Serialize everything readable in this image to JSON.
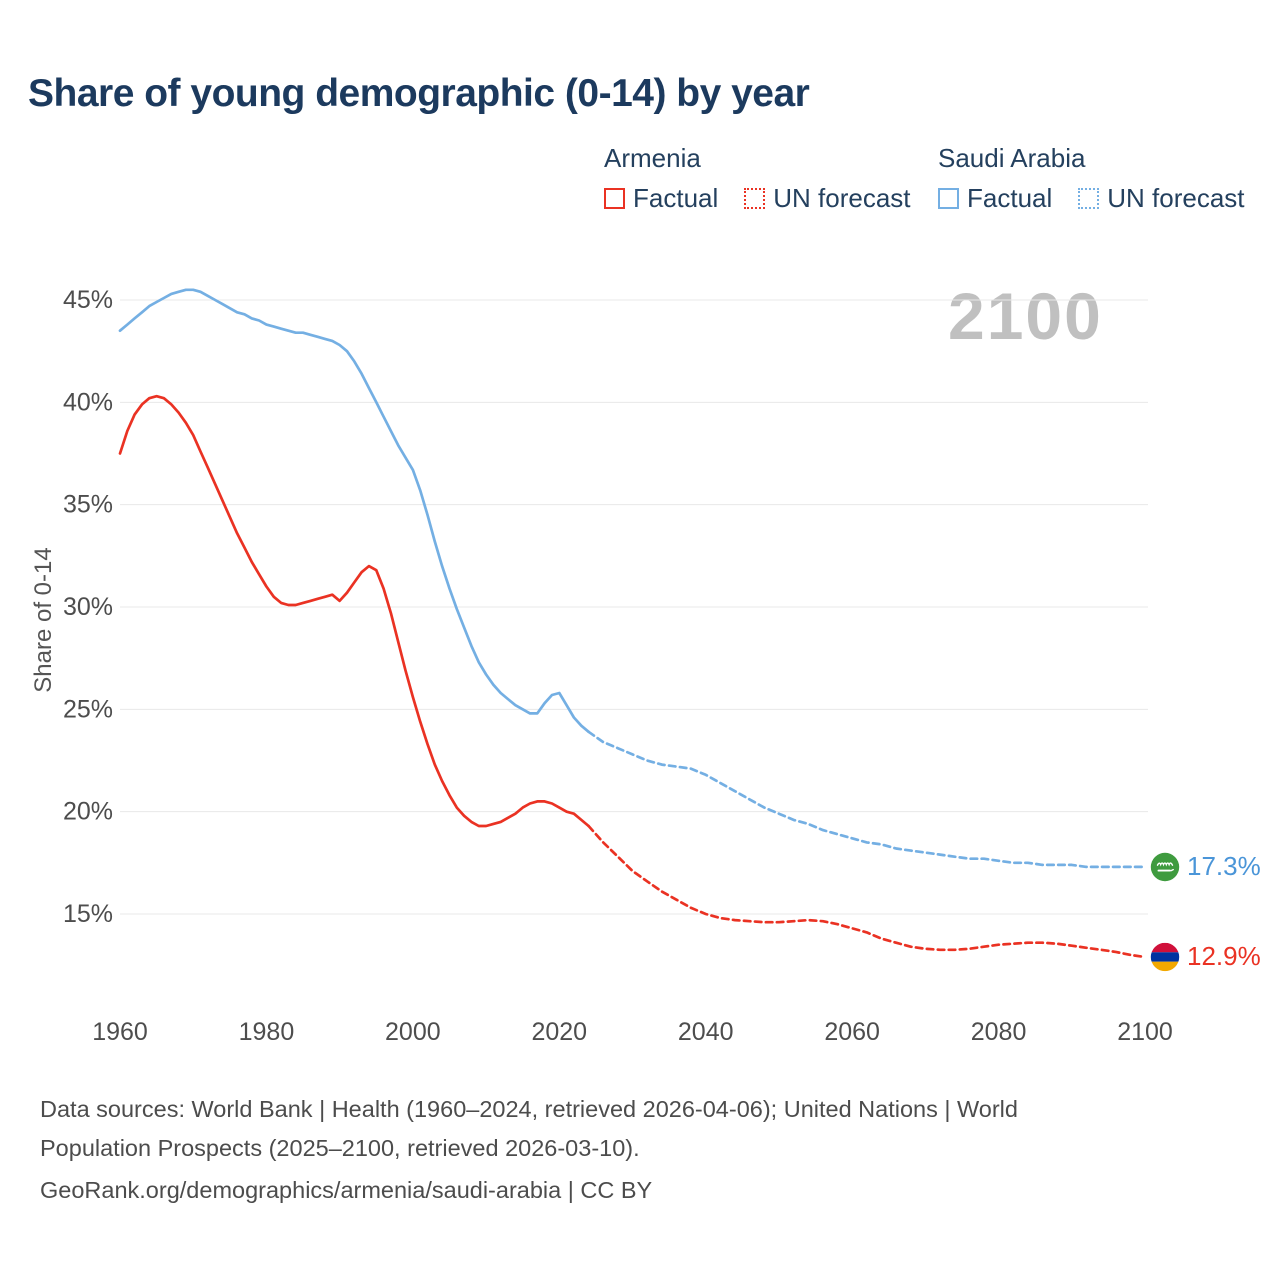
{
  "title": "Share of young demographic (0-14) by year",
  "watermark": "2100",
  "legend": {
    "groups": [
      {
        "name": "Armenia",
        "color": "#ea3223",
        "items": [
          {
            "label": "Factual",
            "style": "solid"
          },
          {
            "label": "UN forecast",
            "style": "dotted"
          }
        ]
      },
      {
        "name": "Saudi Arabia",
        "color": "#74afe3",
        "items": [
          {
            "label": "Factual",
            "style": "solid"
          },
          {
            "label": "UN forecast",
            "style": "dotted"
          }
        ]
      }
    ]
  },
  "chart_data": {
    "type": "line",
    "title": "Share of young demographic (0-14) by year",
    "xlabel": "",
    "ylabel": "Share of 0-14",
    "xlim": [
      1960,
      2100
    ],
    "ylim": [
      13,
      46
    ],
    "grid": "horizontal",
    "x_tick_values": [
      1960,
      1980,
      2000,
      2020,
      2040,
      2060,
      2080,
      2100
    ],
    "x_tick_labels": [
      "1960",
      "1980",
      "2000",
      "2020",
      "2040",
      "2060",
      "2080",
      "2100"
    ],
    "y_tick_values": [
      15,
      20,
      25,
      30,
      35,
      40,
      45
    ],
    "y_tick_labels": [
      "15%",
      "20%",
      "25%",
      "30%",
      "35%",
      "40%",
      "45%"
    ],
    "series": [
      {
        "id": "armenia-factual",
        "name": "Armenia Factual",
        "color": "#ea3223",
        "dash": "solid",
        "x_start": 1960,
        "x_step": 1,
        "values": [
          37.5,
          38.6,
          39.4,
          39.9,
          40.2,
          40.3,
          40.2,
          39.9,
          39.5,
          39.0,
          38.4,
          37.6,
          36.8,
          36.0,
          35.2,
          34.4,
          33.6,
          32.9,
          32.2,
          31.6,
          31.0,
          30.5,
          30.2,
          30.1,
          30.1,
          30.2,
          30.3,
          30.4,
          30.5,
          30.6,
          30.3,
          30.7,
          31.2,
          31.7,
          32.0,
          31.8,
          30.9,
          29.7,
          28.3,
          26.9,
          25.6,
          24.4,
          23.3,
          22.3,
          21.5,
          20.8,
          20.2,
          19.8,
          19.5,
          19.3,
          19.3,
          19.4,
          19.5,
          19.7,
          19.9,
          20.2,
          20.4,
          20.5,
          20.5,
          20.4,
          20.2,
          20.0,
          19.9,
          19.6,
          19.3
        ]
      },
      {
        "id": "armenia-forecast",
        "name": "Armenia UN forecast",
        "color": "#ea3223",
        "dash": "dashed",
        "x_start": 2024,
        "x_step": 2,
        "values": [
          19.3,
          18.5,
          17.8,
          17.1,
          16.6,
          16.1,
          15.7,
          15.3,
          15.0,
          14.8,
          14.7,
          14.65,
          14.6,
          14.6,
          14.65,
          14.7,
          14.65,
          14.5,
          14.3,
          14.1,
          13.8,
          13.6,
          13.4,
          13.3,
          13.25,
          13.25,
          13.3,
          13.4,
          13.5,
          13.55,
          13.6,
          13.6,
          13.55,
          13.45,
          13.35,
          13.25,
          13.15,
          13.0,
          12.9
        ]
      },
      {
        "id": "saudi-factual",
        "name": "Saudi Arabia Factual",
        "color": "#74afe3",
        "dash": "solid",
        "x_start": 1960,
        "x_step": 1,
        "values": [
          43.5,
          43.8,
          44.1,
          44.4,
          44.7,
          44.9,
          45.1,
          45.3,
          45.4,
          45.5,
          45.5,
          45.4,
          45.2,
          45.0,
          44.8,
          44.6,
          44.4,
          44.3,
          44.1,
          44.0,
          43.8,
          43.7,
          43.6,
          43.5,
          43.4,
          43.4,
          43.3,
          43.2,
          43.1,
          43.0,
          42.8,
          42.5,
          42.0,
          41.4,
          40.7,
          40.0,
          39.3,
          38.6,
          37.9,
          37.3,
          36.7,
          35.7,
          34.5,
          33.2,
          32.0,
          30.9,
          29.9,
          29.0,
          28.1,
          27.3,
          26.7,
          26.2,
          25.8,
          25.5,
          25.2,
          25.0,
          24.8,
          24.8,
          25.3,
          25.7,
          25.8,
          25.2,
          24.6,
          24.2,
          23.9
        ]
      },
      {
        "id": "saudi-forecast",
        "name": "Saudi Arabia UN forecast",
        "color": "#74afe3",
        "dash": "dashed",
        "x_start": 2024,
        "x_step": 2,
        "values": [
          23.9,
          23.4,
          23.1,
          22.8,
          22.5,
          22.3,
          22.2,
          22.1,
          21.8,
          21.4,
          21.0,
          20.6,
          20.2,
          19.9,
          19.6,
          19.4,
          19.1,
          18.9,
          18.7,
          18.5,
          18.4,
          18.2,
          18.1,
          18.0,
          17.9,
          17.8,
          17.7,
          17.7,
          17.6,
          17.5,
          17.5,
          17.4,
          17.4,
          17.4,
          17.3,
          17.3,
          17.3,
          17.3,
          17.3
        ]
      }
    ],
    "end_labels": [
      {
        "series": "Saudi Arabia",
        "flag": "saudi-arabia",
        "value": 17.3,
        "value_label": "17.3%",
        "color": "#4a95d8"
      },
      {
        "series": "Armenia",
        "flag": "armenia",
        "value": 12.9,
        "value_label": "12.9%",
        "color": "#ea3223"
      }
    ]
  },
  "footer": {
    "line1": "Data sources: World Bank | Health (1960–2024, retrieved 2026-04-06); United Nations | World",
    "line2": "Population Prospects (2025–2100, retrieved 2026-03-10).",
    "line3": "GeoRank.org/demographics/armenia/saudi-arabia | CC BY"
  }
}
